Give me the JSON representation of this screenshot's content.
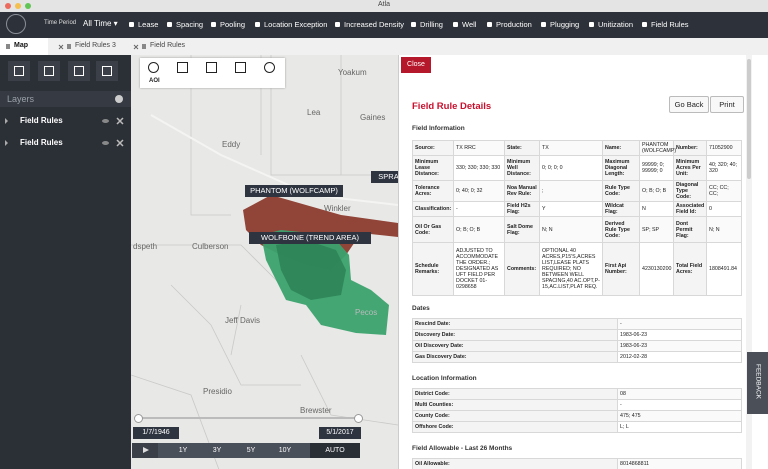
{
  "window_title": "Atla",
  "nav": {
    "time_period_label": "Time Period",
    "time_period_value": "All Time ▾",
    "items": [
      "Lease",
      "Spacing",
      "Pooling",
      "Location Exception",
      "Increased Density",
      "Drilling",
      "Well",
      "Production",
      "Plugging",
      "Unitization",
      "Field Rules"
    ]
  },
  "tabs": [
    "Map",
    "Field Rules 3",
    "Field Rules"
  ],
  "sidebar": {
    "title": "Layers",
    "layers": [
      "Field Rules",
      "Field Rules"
    ]
  },
  "map": {
    "tool_label": "AOI",
    "place_labels": [
      "Yoakum",
      "Lea",
      "Gaines",
      "Eddy",
      "Winkler",
      "dspeth",
      "Culberson",
      "Jeff Davis",
      "Pecos",
      "Presidio",
      "Brewster"
    ],
    "boxed_labels": [
      "PHANTOM (WOLFCAMP)",
      "WOLFBONE (TREND AREA)",
      "SPRAB"
    ],
    "timeline": {
      "start": "1/7/1946",
      "end": "5/1/2017",
      "buttons": [
        "1Y",
        "3Y",
        "5Y",
        "10Y",
        "AUTO"
      ]
    }
  },
  "panel": {
    "close": "Close",
    "title": "Field Rule Details",
    "buttons": [
      "Go Back",
      "Print"
    ],
    "feedback": "FEEDBACK",
    "field_information": {
      "title": "Field Information",
      "rows": [
        [
          "Source:",
          "TX RRC",
          "State:",
          "TX",
          "Name:",
          "PHANTOM (WOLFCAMP)",
          "Number:",
          "71052900"
        ],
        [
          "Minimum Lease Distance:",
          "330; 330; 330; 330",
          "Minimum Well Distance:",
          "0; 0; 0; 0",
          "Maximum Diagonal Length:",
          "99999; 0; 99999; 0",
          "Minimum Acres Per Unit:",
          "40; 320; 40; 320"
        ],
        [
          "Tolerance Acres:",
          "0; 40; 0; 32",
          "Noa Manual Rev Rule:",
          ";",
          "Rule Type Code:",
          "O; B; O; B",
          "Diagonal Type Code:",
          "CC; CC; CC;"
        ],
        [
          "Classification:",
          "-",
          "Field H2s Flag:",
          "Y",
          "Wildcat Flag:",
          "N",
          "Associated Field Id:",
          "0"
        ],
        [
          "Oil Or Gas Code:",
          "O; B; O; B",
          "Salt Dome Flag:",
          "N; N",
          "Derived Rule Type Code:",
          "SP; SP",
          "Dont Permit Flag:",
          "N; N"
        ],
        [
          "Schedule Remarks:",
          "ADJUSTED TO ACCOMMODATE THE ORDER.; DESIGNATED AS UFT FIELD PER DOCKET 01-0298658",
          "Comments:",
          "OPTIONAL 40 ACRES,P15'S,ACRES LIST,LEASE PLATS REQUIRED; NO BETWEEN WELL SPACING,40 AC.OPT,P-15,AC.LIST,PLAT REQ.",
          "First Api Number:",
          "4230130200",
          "Total Field Acres:",
          "1808491.84"
        ]
      ]
    },
    "dates": {
      "title": "Dates",
      "rows": [
        [
          "Rescind Date:",
          "-"
        ],
        [
          "Discovery Date:",
          "1983-06-23"
        ],
        [
          "Oil Discovery Date:",
          "1983-06-23"
        ],
        [
          "Gas Discovery Date:",
          "2012-02-28"
        ]
      ]
    },
    "location_information": {
      "title": "Location Information",
      "rows": [
        [
          "District Code:",
          "08"
        ],
        [
          "Multi Counties:",
          "-"
        ],
        [
          "County Code:",
          "475; 475"
        ],
        [
          "Offshore Code:",
          "L; L"
        ]
      ]
    },
    "field_allowable": {
      "title": "Field Allowable - Last 26 Months",
      "rows": [
        [
          "Oil Allowable:",
          "8014868811"
        ]
      ]
    }
  }
}
